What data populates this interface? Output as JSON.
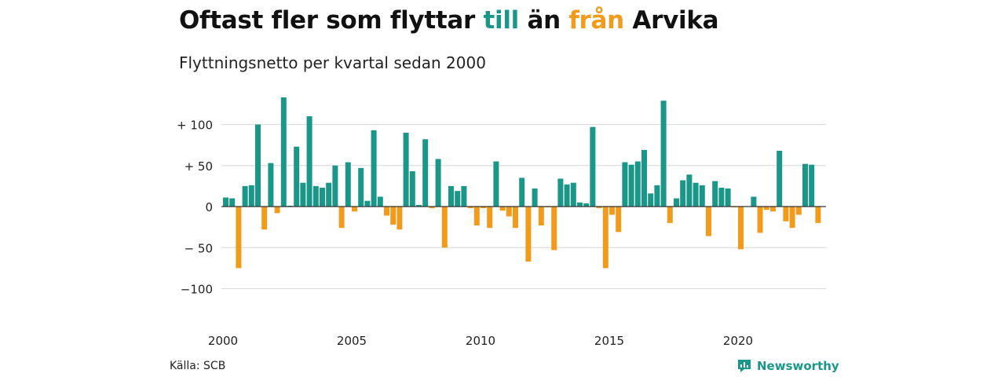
{
  "header": {
    "title_part1": "Oftast fler som flyttar ",
    "title_pos": "till",
    "title_mid": " än ",
    "title_neg": "från",
    "title_part2": " Arvika",
    "subtitle": "Flyttningsnetto per kvartal sedan 2000"
  },
  "footer": {
    "source": "Källa: SCB",
    "brand": "Newsworthy"
  },
  "colors": {
    "positive": "#1a9788",
    "negative": "#f29b1b",
    "grid": "#dddddd",
    "zero_line": "#333333"
  },
  "chart_data": {
    "type": "bar",
    "x_tick_labels": [
      "2000",
      "2005",
      "2010",
      "2015",
      "2020"
    ],
    "y_ticks": [
      100,
      50,
      0,
      -50,
      -100
    ],
    "y_tick_labels": [
      "+ 100",
      "+  50",
      "0",
      "− 50",
      "−100"
    ],
    "ylim": [
      -100,
      133
    ],
    "x_start": "2000 Q1",
    "quarters_per_year": 4,
    "series": [
      {
        "values": [
          11,
          10,
          -75,
          25,
          26,
          100,
          -28,
          53,
          -8,
          133,
          1,
          73,
          29,
          110,
          25,
          23,
          29,
          50,
          -26,
          54,
          -6,
          47,
          7,
          93,
          12,
          -11,
          -22,
          -28,
          90,
          43,
          2,
          82,
          -2,
          58,
          -50,
          25,
          19,
          25,
          -2,
          -23,
          -2,
          -26,
          55,
          -5,
          -12,
          -26,
          35,
          -67,
          22,
          -23,
          -1,
          -53,
          34,
          27,
          29,
          5,
          4,
          97,
          -2,
          -75,
          -10,
          -31,
          54,
          51,
          55,
          69,
          16,
          26,
          129,
          -20,
          10,
          32,
          39,
          29,
          26,
          -36,
          31,
          23,
          22,
          -1,
          -52,
          0,
          12,
          -32,
          -4,
          -6,
          68,
          -18,
          -26,
          -10,
          52,
          51,
          -20
        ]
      }
    ]
  }
}
